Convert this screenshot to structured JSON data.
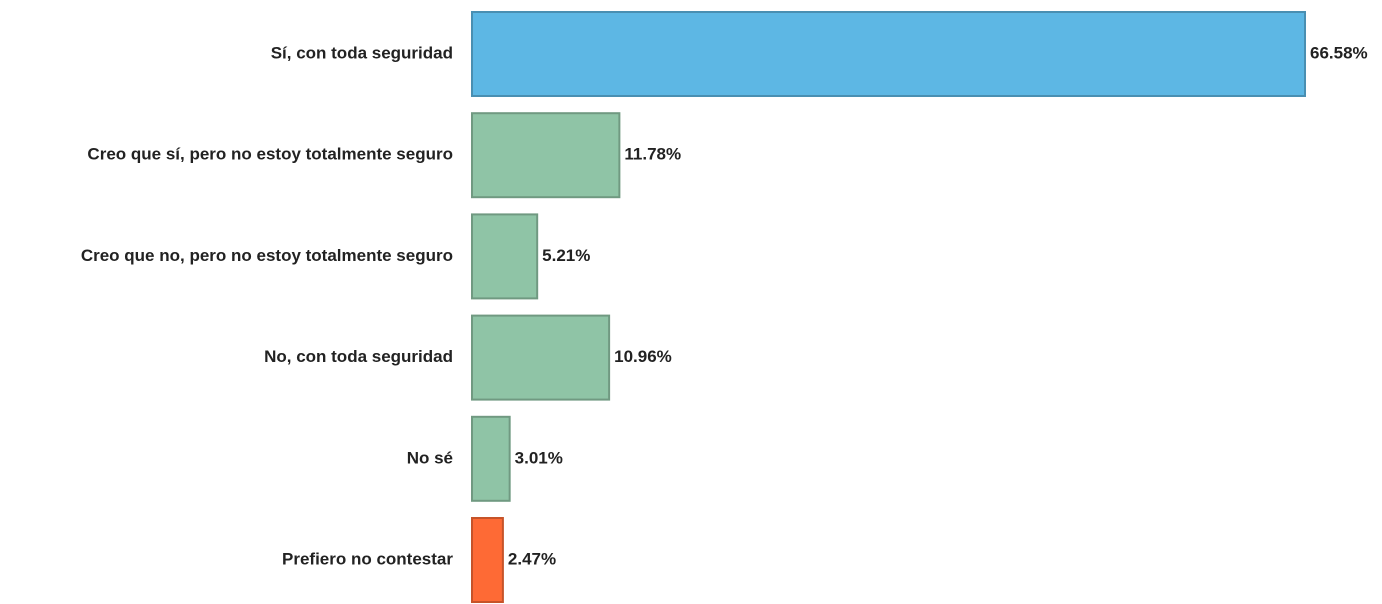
{
  "chart_data": {
    "type": "barh",
    "categories": [
      "Sí, con toda seguridad",
      "Creo que sí, pero no estoy totalmente seguro",
      "Creo que no, pero no estoy totalmente seguro",
      "No, con toda seguridad",
      "No sé",
      "Prefiero no contestar"
    ],
    "values": [
      66.58,
      11.78,
      5.21,
      10.96,
      3.01,
      2.47
    ],
    "value_labels": [
      "66.58%",
      "11.78%",
      "5.21%",
      "10.96%",
      "3.01%",
      "2.47%"
    ],
    "colors": [
      "#5db7e4",
      "#8fc4a6",
      "#8fc4a6",
      "#8fc4a6",
      "#8fc4a6",
      "#fe6a35"
    ]
  }
}
